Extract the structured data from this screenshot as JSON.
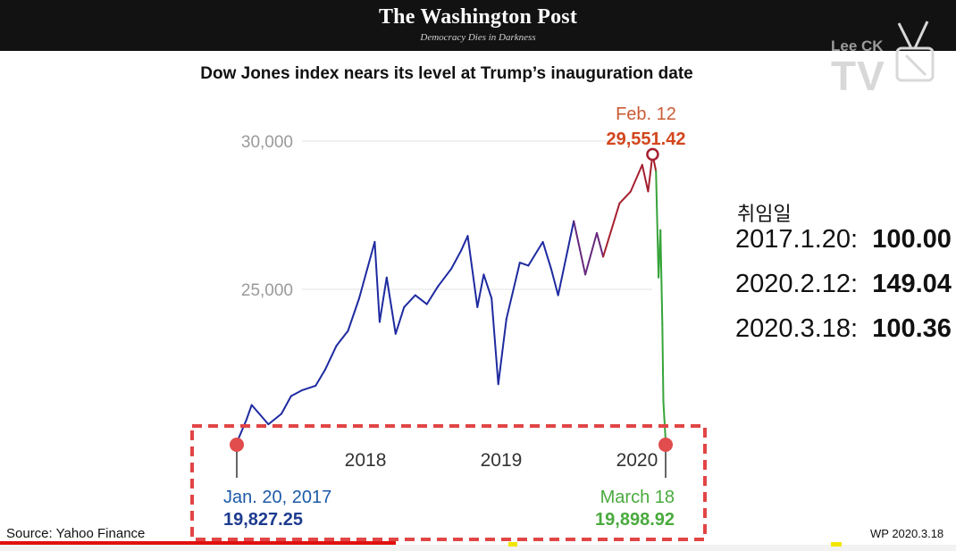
{
  "header": {
    "masthead": "The Washington Post",
    "tagline": "Democracy Dies in Darkness"
  },
  "watermark": {
    "name": "Lee CK",
    "tv": "TV"
  },
  "chart_data": {
    "type": "line",
    "title": "Dow Jones index nears its level at Trump’s inauguration date",
    "xlabel": "",
    "ylabel": "",
    "x_range": [
      "2017-01-20",
      "2020-03-18"
    ],
    "ylim": [
      19500,
      30500
    ],
    "y_ticks": [
      {
        "value": 25000,
        "label": "25,000"
      },
      {
        "value": 30000,
        "label": "30,000"
      }
    ],
    "x_ticks": [
      {
        "value": "2018-01-01",
        "label": "2018"
      },
      {
        "value": "2019-01-01",
        "label": "2019"
      },
      {
        "value": "2020-01-01",
        "label": "2020"
      }
    ],
    "grid": true,
    "legend": "none",
    "series": [
      {
        "points": [
          [
            "2017-01-20",
            19827
          ],
          [
            "2017-02-15",
            20600
          ],
          [
            "2017-03-01",
            21100
          ],
          [
            "2017-04-15",
            20450
          ],
          [
            "2017-05-20",
            20800
          ],
          [
            "2017-06-15",
            21400
          ],
          [
            "2017-07-15",
            21600
          ],
          [
            "2017-08-20",
            21750
          ],
          [
            "2017-09-15",
            22300
          ],
          [
            "2017-10-15",
            23100
          ],
          [
            "2017-11-15",
            23600
          ],
          [
            "2017-12-15",
            24700
          ],
          [
            "2018-01-26",
            26600
          ],
          [
            "2018-02-08",
            23900
          ],
          [
            "2018-02-27",
            25400
          ],
          [
            "2018-03-23",
            23500
          ],
          [
            "2018-04-15",
            24400
          ],
          [
            "2018-05-15",
            24800
          ],
          [
            "2018-06-15",
            24500
          ],
          [
            "2018-07-15",
            25100
          ],
          [
            "2018-08-20",
            25700
          ],
          [
            "2018-09-15",
            26300
          ],
          [
            "2018-10-03",
            26800
          ],
          [
            "2018-10-29",
            24400
          ],
          [
            "2018-11-15",
            25500
          ],
          [
            "2018-12-06",
            24700
          ],
          [
            "2018-12-24",
            21800
          ],
          [
            "2019-01-15",
            24000
          ],
          [
            "2019-02-20",
            25900
          ],
          [
            "2019-03-15",
            25800
          ],
          [
            "2019-04-23",
            26600
          ],
          [
            "2019-05-15",
            25700
          ],
          [
            "2019-06-03",
            24800
          ],
          [
            "2019-07-15",
            27300
          ],
          [
            "2019-08-15",
            25500
          ],
          [
            "2019-09-15",
            26900
          ],
          [
            "2019-10-02",
            26100
          ],
          [
            "2019-11-15",
            27900
          ],
          [
            "2019-12-15",
            28300
          ],
          [
            "2020-01-15",
            29200
          ],
          [
            "2020-01-31",
            28300
          ],
          [
            "2020-02-12",
            29551
          ],
          [
            "2020-02-21",
            28990
          ],
          [
            "2020-02-28",
            25400
          ],
          [
            "2020-03-04",
            27000
          ],
          [
            "2020-03-09",
            23850
          ],
          [
            "2020-03-12",
            21200
          ],
          [
            "2020-03-18",
            19899
          ]
        ]
      }
    ],
    "annotations": {
      "start": {
        "date": "Jan. 20, 2017",
        "value": "19,827.25"
      },
      "peak": {
        "date": "Feb. 12",
        "value": "29,551.42"
      },
      "end": {
        "date": "March 18",
        "value": "19,898.92"
      }
    },
    "colors": {
      "line_blue": "#1e2aa0",
      "line_purple": "#66287d",
      "line_red": "#a51f2f",
      "line_green": "#36a43a",
      "peak_text": "#d2461d",
      "peak_label": "#c95c37",
      "start_text": "#1c5aa8",
      "end_text": "#4aaa3e",
      "dot_red": "#e14c4c",
      "dashed_box": "#e14545"
    }
  },
  "side_panel": {
    "heading": "취임일",
    "rows": [
      {
        "label": "2017.1.20:",
        "value": "100.00"
      },
      {
        "label": "2020.2.12:",
        "value": "149.04"
      },
      {
        "label": "2020.3.18:",
        "value": "100.36"
      }
    ]
  },
  "footer": {
    "source": "Source: Yahoo Finance",
    "wp_date": "WP 2020.3.18"
  }
}
